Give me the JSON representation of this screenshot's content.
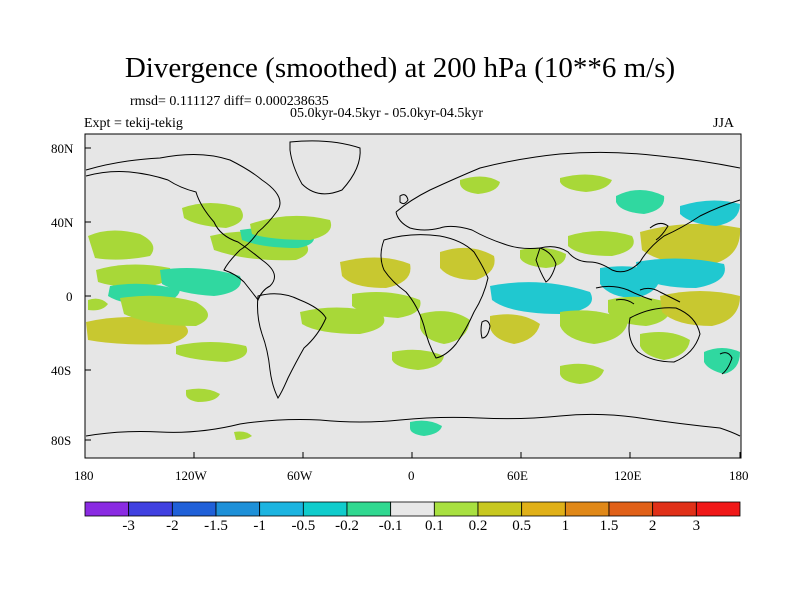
{
  "title": "Divergence (smoothed) at 200 hPa (10**6 m/s)",
  "stats": "rmsd= 0.111127 diff= 0.000238635",
  "period": "05.0kyr-04.5kyr - 05.0kyr-04.5kyr",
  "experiment": "Expt = tekij-tekig",
  "season": "JJA",
  "lat_ticks": [
    "80N",
    "40N",
    "0",
    "40S",
    "80S"
  ],
  "lon_ticks": [
    "180",
    "120W",
    "60W",
    "0",
    "60E",
    "120E",
    "180"
  ],
  "colorbar": {
    "labels": [
      "-3",
      "-2",
      "-1.5",
      "-1",
      "-0.5",
      "-0.2",
      "-0.1",
      "0.1",
      "0.2",
      "0.5",
      "1",
      "1.5",
      "2",
      "3"
    ],
    "colors": [
      "#8a2be2",
      "#4040e0",
      "#2060d8",
      "#1e90d8",
      "#1cb4e0",
      "#10cccc",
      "#30d890",
      "#e8e8e8",
      "#a8e040",
      "#c8c820",
      "#e0b018",
      "#e08818",
      "#e06018",
      "#e03018",
      "#f01818"
    ]
  },
  "colors": {
    "ocean": "#e6e6e6",
    "positive": "#a8d838",
    "neg_small": "#40d8a0",
    "neg_med": "#20c8d0",
    "pos_med": "#d0c830"
  }
}
